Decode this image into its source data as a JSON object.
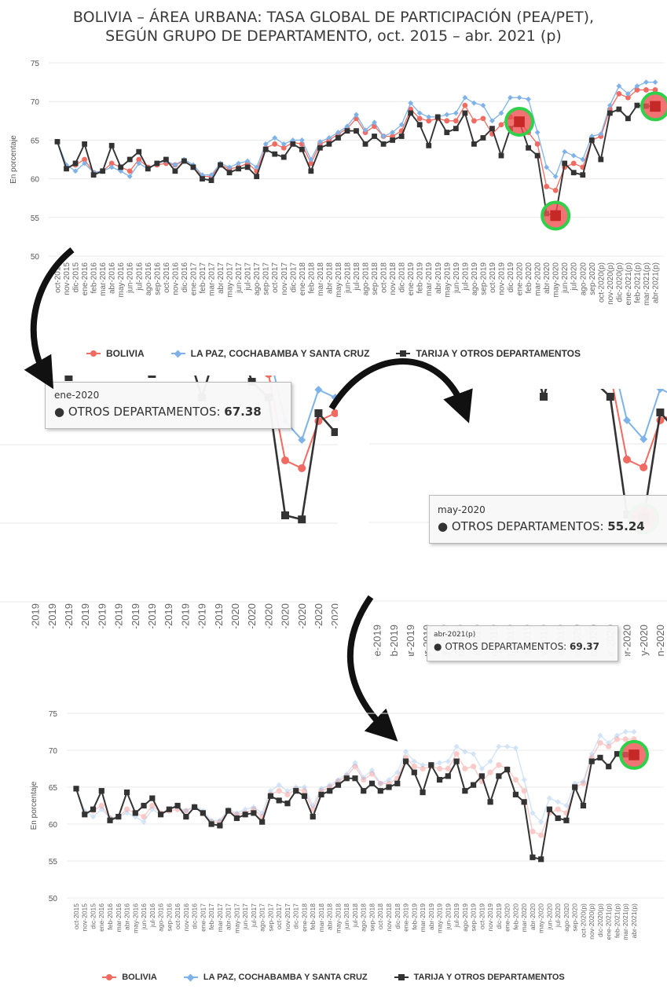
{
  "title": {
    "line1": "BOLIVIA – ÁREA URBANA: TASA GLOBAL DE PARTICIPACIÓN (PEA/PET),",
    "line2": "SEGÚN GRUPO DE DEPARTAMENTO, oct. 2015 – abr. 2021 (p)"
  },
  "legend": {
    "bolivia": "BOLIVIA",
    "lpcs": "LA PAZ, COCHABAMBA Y SANTA CRUZ",
    "tarija": "TARIJA Y OTROS DEPARTAMENTOS"
  },
  "tooltips": {
    "t1": {
      "date": "ene-2020",
      "label": "OTROS DEPARTAMENTOS: ",
      "value": "67.38"
    },
    "t2": {
      "date": "may-2020",
      "label": "OTROS DEPARTAMENTOS: ",
      "value": "55.24"
    },
    "t3": {
      "date": "abr-2021(p)",
      "label": "OTROS DEPARTAMENTOS: ",
      "value": "69.37"
    }
  },
  "colors": {
    "bolivia": "#f26b63",
    "lpcs": "#7fb3e8",
    "tarija": "#333333",
    "highlight": "#2fd14a",
    "highlight_fill": "#ef5050"
  },
  "chart_data": {
    "type": "line",
    "title": "BOLIVIA – ÁREA URBANA: TASA GLOBAL DE PARTICIPACIÓN (PEA/PET), SEGÚN GRUPO DE DEPARTAMENTO, oct. 2015 – abr. 2021 (p)",
    "ylabel": "En porcentaje",
    "ylim": [
      50,
      75
    ],
    "yticks": [
      50,
      55,
      60,
      65,
      70,
      75
    ],
    "grid": true,
    "legend_position": "bottom",
    "x": [
      "oct-2015",
      "nov-2015",
      "dic-2015",
      "ene-2016",
      "feb-2016",
      "mar-2016",
      "abr-2016",
      "may-2016",
      "jun-2016",
      "jul-2016",
      "ago-2016",
      "sep-2016",
      "oct-2016",
      "nov-2016",
      "dic-2016",
      "ene-2017",
      "feb-2017",
      "mar-2017",
      "abr-2017",
      "may-2017",
      "jun-2017",
      "jul-2017",
      "ago-2017",
      "sep-2017",
      "oct-2017",
      "nov-2017",
      "dic-2017",
      "ene-2018",
      "feb-2018",
      "mar-2018",
      "abr-2018",
      "may-2018",
      "jun-2018",
      "jul-2018",
      "ago-2018",
      "sep-2018",
      "oct-2018",
      "nov-2018",
      "dic-2018",
      "ene-2019",
      "feb-2019",
      "mar-2019",
      "abr-2019",
      "may-2019",
      "jun-2019",
      "jul-2019",
      "ago-2019",
      "sep-2019",
      "oct-2019",
      "nov-2019",
      "dic-2019",
      "ene-2020",
      "feb-2020",
      "mar-2020",
      "abr-2020",
      "may-2020",
      "jun-2020",
      "jul-2020",
      "ago-2020",
      "sep-2020",
      "oct-2020(p)",
      "nov-2020(p)",
      "dic-2020(p)",
      "ene-2021(p)",
      "feb-2021(p)",
      "mar-2021(p)",
      "abr-2021(p)"
    ],
    "series": [
      {
        "name": "BOLIVIA",
        "values": [
          64.8,
          61.5,
          61.8,
          62.5,
          60.8,
          61.0,
          62.0,
          61.5,
          61.0,
          62.5,
          61.5,
          61.8,
          62.0,
          61.8,
          62.3,
          61.5,
          60.3,
          60.3,
          61.8,
          61.3,
          61.5,
          62.0,
          61.0,
          64.0,
          64.5,
          64.0,
          64.7,
          64.5,
          62.0,
          64.5,
          65.0,
          65.8,
          66.5,
          67.8,
          66.0,
          66.8,
          65.5,
          65.5,
          66.2,
          69.0,
          67.8,
          67.5,
          67.8,
          67.5,
          67.5,
          69.5,
          67.5,
          67.8,
          65.8,
          67.0,
          68.0,
          67.5,
          66.0,
          64.5,
          59.0,
          58.5,
          61.5,
          62.0,
          61.5,
          65.0,
          65.5,
          69.0,
          71.0,
          70.5,
          71.5,
          71.5,
          71.5
        ]
      },
      {
        "name": "LA PAZ, COCHABAMBA Y SANTA CRUZ",
        "values": [
          64.8,
          61.8,
          61.0,
          62.0,
          60.8,
          61.0,
          61.5,
          61.0,
          60.3,
          62.0,
          61.3,
          62.0,
          62.3,
          61.8,
          62.5,
          61.8,
          60.5,
          60.5,
          62.0,
          61.5,
          62.0,
          62.3,
          61.5,
          64.5,
          65.3,
          64.5,
          65.0,
          65.0,
          62.5,
          64.8,
          65.3,
          66.0,
          66.8,
          68.3,
          66.3,
          67.3,
          65.5,
          66.0,
          67.0,
          69.8,
          68.5,
          68.0,
          68.0,
          68.3,
          68.5,
          70.5,
          69.8,
          69.5,
          67.5,
          68.5,
          70.5,
          70.5,
          70.3,
          66.0,
          61.5,
          60.3,
          63.5,
          63.0,
          62.5,
          65.5,
          65.8,
          69.5,
          72.0,
          71.0,
          72.0,
          72.5,
          72.5
        ]
      },
      {
        "name": "TARIJA Y OTROS DEPARTAMENTOS",
        "values": [
          64.8,
          61.3,
          62.0,
          64.5,
          60.5,
          61.0,
          64.3,
          61.5,
          62.5,
          63.5,
          61.3,
          62.0,
          62.5,
          61.0,
          62.3,
          61.5,
          60.0,
          59.8,
          61.8,
          60.8,
          61.3,
          61.5,
          60.3,
          63.8,
          63.2,
          62.8,
          64.5,
          63.8,
          61.0,
          64.0,
          64.5,
          65.3,
          66.2,
          66.2,
          64.5,
          65.5,
          64.5,
          65.0,
          65.5,
          68.5,
          67.0,
          64.3,
          68.0,
          66.0,
          66.5,
          68.5,
          64.5,
          65.3,
          66.5,
          63.0,
          66.5,
          67.38,
          64.0,
          63.0,
          55.5,
          55.24,
          62.0,
          60.8,
          60.5,
          65.0,
          62.5,
          68.5,
          69.0,
          67.8,
          69.5,
          69.4,
          69.37
        ]
      }
    ]
  }
}
